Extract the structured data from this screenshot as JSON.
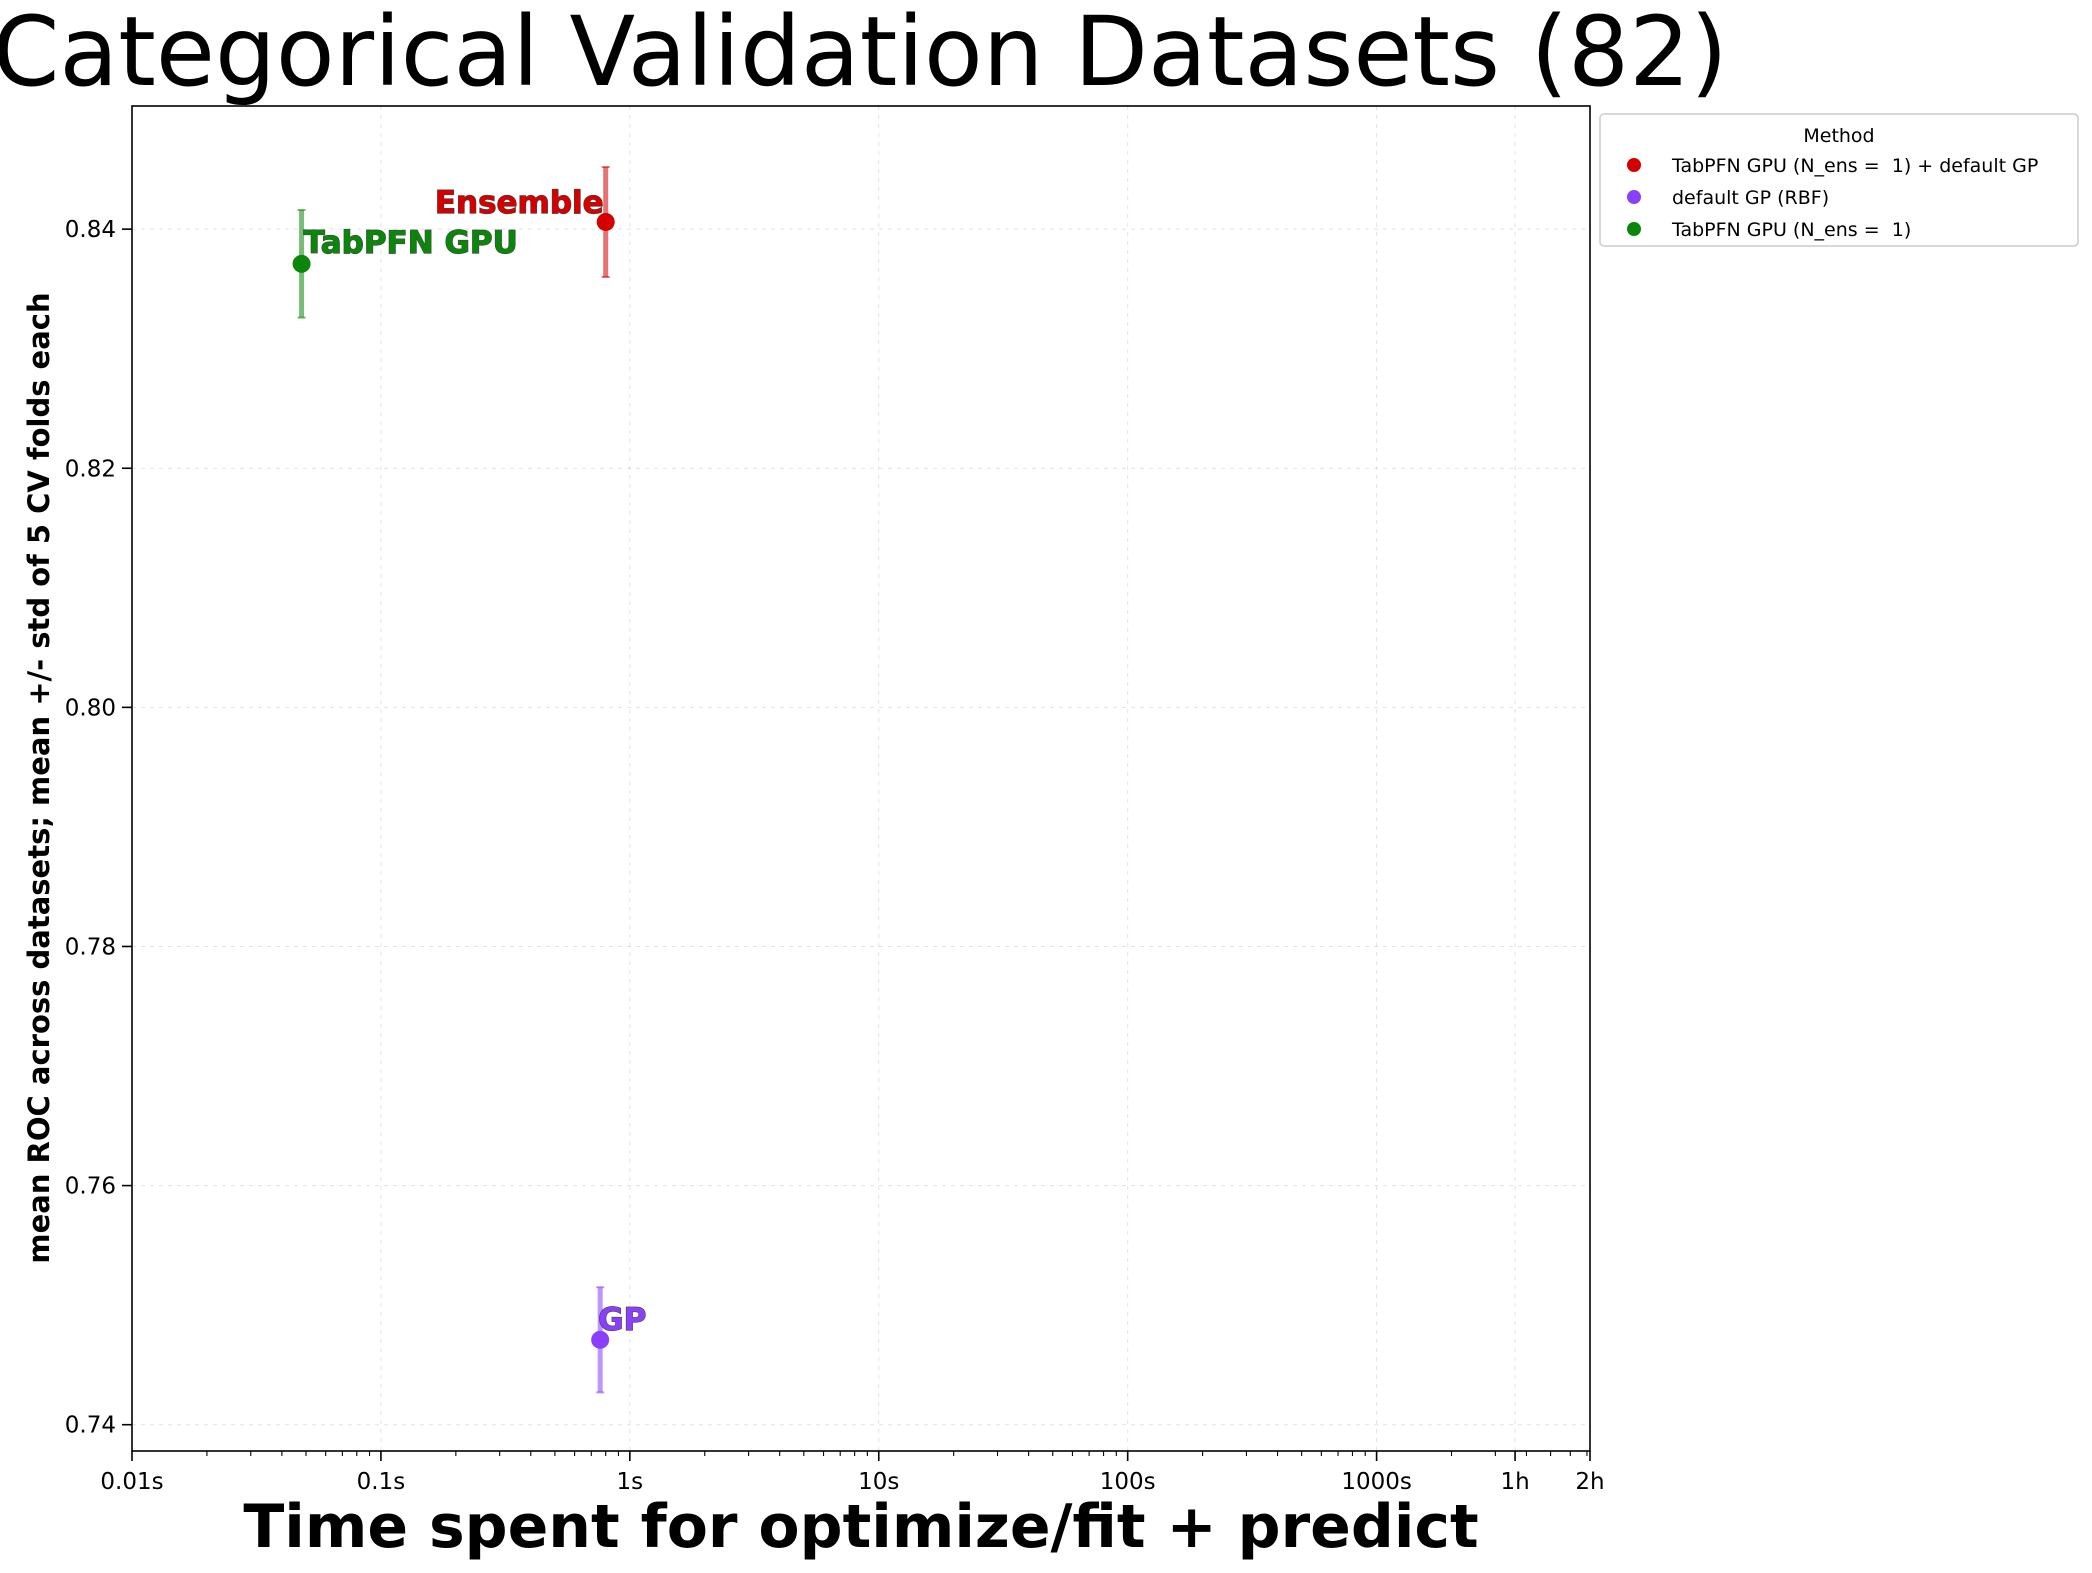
{
  "chart_data": {
    "type": "scatter",
    "title": "Categorical Validation Datasets (82)",
    "xlabel": "Time spent for optimize/fit + predict",
    "ylabel": "mean ROC across datasets; mean +/- std of 5 CV folds each",
    "xscale": "log",
    "xlim_seconds": [
      0.01,
      7200
    ],
    "ylim": [
      0.7378,
      0.8503
    ],
    "x_ticks": [
      {
        "value": 0.01,
        "label": "0.01s"
      },
      {
        "value": 0.1,
        "label": "0.1s"
      },
      {
        "value": 1,
        "label": "1s"
      },
      {
        "value": 10,
        "label": "10s"
      },
      {
        "value": 100,
        "label": "100s"
      },
      {
        "value": 1000,
        "label": "1000s"
      },
      {
        "value": 3600,
        "label": "1h"
      },
      {
        "value": 7200,
        "label": "2h"
      }
    ],
    "y_ticks": [
      {
        "value": 0.74,
        "label": "0.74"
      },
      {
        "value": 0.76,
        "label": "0.76"
      },
      {
        "value": 0.78,
        "label": "0.78"
      },
      {
        "value": 0.8,
        "label": "0.80"
      },
      {
        "value": 0.82,
        "label": "0.82"
      },
      {
        "value": 0.84,
        "label": "0.84"
      }
    ],
    "grid": true,
    "legend": {
      "title": "Method",
      "placement": "outside-top-right"
    },
    "series": [
      {
        "name": "TabPFN GPU (N_ens =  1) + default GP",
        "annotation": "Ensemble",
        "color": "#d40000",
        "x": 0.8,
        "y": 0.8406,
        "std": 0.0046
      },
      {
        "name": "default GP (RBF)",
        "annotation": "GP",
        "color": "#8a3ffc",
        "x": 0.76,
        "y": 0.7471,
        "std": 0.0044
      },
      {
        "name": "TabPFN GPU (N_ens =  1)",
        "annotation": "TabPFN GPU",
        "color": "#0a870a",
        "x": 0.048,
        "y": 0.8371,
        "std": 0.0045
      }
    ]
  }
}
